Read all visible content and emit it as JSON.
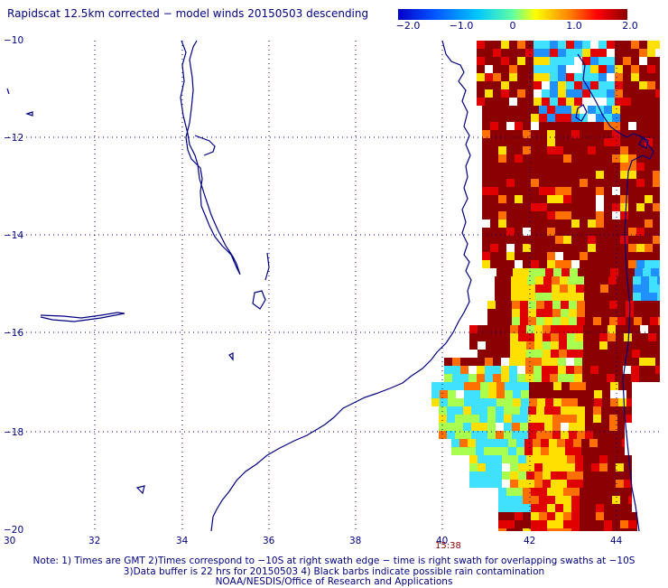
{
  "title": "Rapidscat 12.5km corrected − model winds 20150503 descending",
  "colorbar": {
    "ticks": [
      "−2.0",
      "−1.0",
      "0",
      "1.0",
      "2.0"
    ],
    "range": [
      -2.0,
      2.0
    ],
    "colors": [
      "#0000c8",
      "#0050ff",
      "#00c8ff",
      "#60ffa0",
      "#ffff00",
      "#ff8000",
      "#ff0000",
      "#8b0000"
    ]
  },
  "axes": {
    "x_ticks": [
      "30",
      "32",
      "34",
      "36",
      "38",
      "40",
      "42",
      "44"
    ],
    "y_ticks": [
      "−10",
      "−12",
      "−14",
      "−16",
      "−18",
      "−20"
    ],
    "lon_range": [
      30,
      45
    ],
    "lat_range": [
      -20,
      -10
    ]
  },
  "time_label": "15:38",
  "notes": [
    "Note: 1) Times are GMT 2)Times correspond to −10S at right swath edge − time is right swath for overlapping swaths at −10S",
    "3)Data buffer is 22 hrs for 20150503 4) Black barbs indicate possible rain contamination",
    "NOAA/NESDIS/Office of Research and Applications"
  ],
  "colors": {
    "text": "#000080",
    "coast": "#000080",
    "grid": "#000080",
    "time": "#8b0000"
  }
}
